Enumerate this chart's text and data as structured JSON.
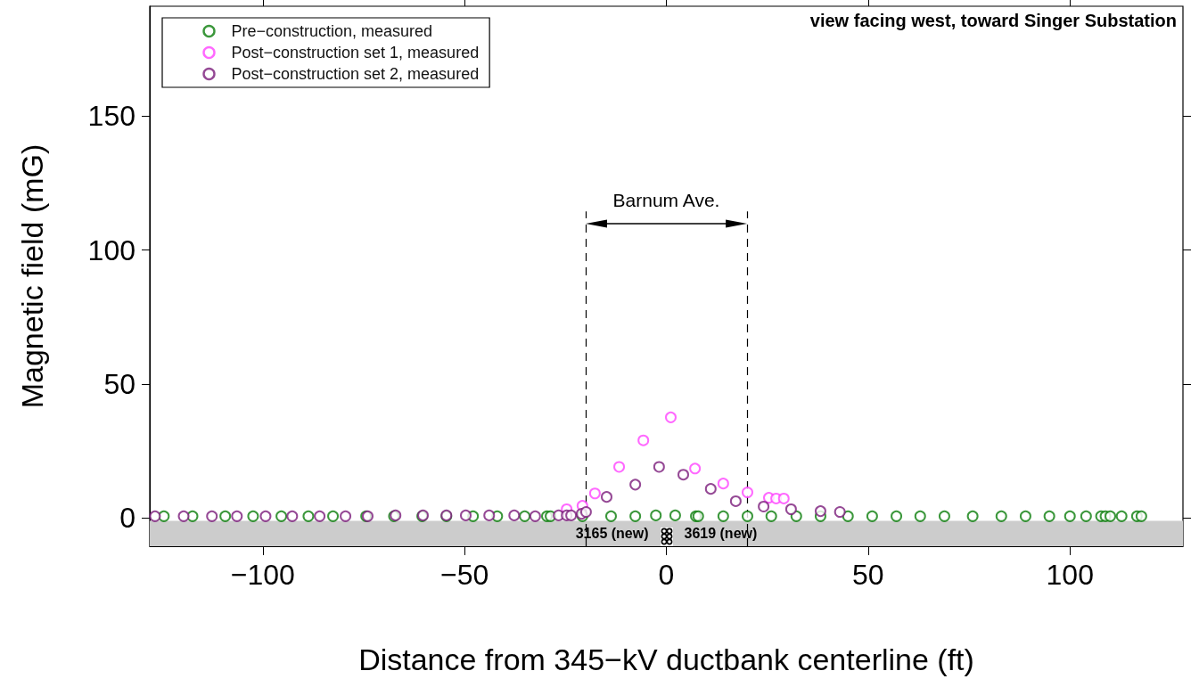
{
  "chart_data": {
    "type": "scatter",
    "xlabel": "Distance from 345−kV ductbank centerline (ft)",
    "ylabel": "Magnetic field (mG)",
    "xlim": [
      -128,
      128
    ],
    "ylim": [
      -10.5,
      191
    ],
    "xticks": [
      {
        "value": -100,
        "label": "−100"
      },
      {
        "value": -50,
        "label": "−50"
      },
      0,
      50,
      100
    ],
    "yticks": [
      0,
      50,
      100,
      150
    ],
    "grid": false,
    "legend": "top left",
    "marker": "circle",
    "title": "view facing west, toward Singer Substation",
    "annotations": [
      "Barnum Ave.",
      "3165 (new)",
      "3619 (new)"
    ],
    "ref_lines": [
      {
        "axis": "x",
        "value": -20,
        "color": "#000000",
        "line_style": "dashed"
      },
      {
        "axis": "x",
        "value": 20,
        "color": "#000000",
        "line_style": "dashed"
      }
    ],
    "bands": [
      {
        "axis": "y",
        "from": -10.5,
        "to": -1,
        "color": "#cccccc"
      }
    ],
    "series": [
      {
        "name": "Pre−construction, measured",
        "color": "#0a7d0a",
        "x": [
          -124.5,
          -117.4,
          -109.3,
          -102.4,
          -95.4,
          -88.7,
          -82.6,
          -74.4,
          -67.5,
          -60.5,
          -54.5,
          -47.9,
          -41.9,
          -35.1,
          -29.6,
          -28.7,
          -20.8,
          -13.7,
          -7.7,
          -2.6,
          2.2,
          7.3,
          7.9,
          14.1,
          20.1,
          26,
          32.2,
          38.2,
          45,
          51,
          57,
          62.9,
          68.9,
          75.9,
          83,
          89,
          94.9,
          100,
          104,
          107.7,
          108.8,
          110,
          112.8,
          116.6,
          117.7
        ],
        "values": [
          0.7,
          0.7,
          0.7,
          0.7,
          0.7,
          0.7,
          0.7,
          0.7,
          0.7,
          0.7,
          0.7,
          0.7,
          0.7,
          0.7,
          0.7,
          0.7,
          0.7,
          0.7,
          0.7,
          1,
          1,
          0.7,
          0.7,
          0.7,
          0.7,
          0.7,
          0.7,
          0.7,
          0.7,
          0.7,
          0.7,
          0.7,
          0.7,
          0.7,
          0.7,
          0.7,
          0.7,
          0.7,
          0.7,
          0.7,
          0.7,
          0.7,
          0.7,
          0.7,
          0.7
        ]
      },
      {
        "name": "Post−construction set 1, measured",
        "color": "#ff44ff",
        "x": [
          -24.7,
          -20.8,
          -17.7,
          -11.7,
          -5.7,
          1.1,
          7.1,
          14.1,
          20.1,
          25.4,
          27.2,
          29.1
        ],
        "values": [
          3.3,
          4.6,
          9.2,
          19.1,
          29,
          37.6,
          18.5,
          12.9,
          9.6,
          7.6,
          7.3,
          7.3
        ]
      },
      {
        "name": "Post−construction set 2, measured",
        "color": "#7b1c7b",
        "x": [
          -126.7,
          -119.6,
          -112.6,
          -106.4,
          -99.3,
          -92.7,
          -85.9,
          -79.5,
          -74,
          -67.1,
          -60.3,
          -54.5,
          -49.7,
          -43.9,
          -37.7,
          -32.5,
          -26.7,
          -24.7,
          -23.6,
          -21,
          -19.9,
          -14.8,
          -7.7,
          -1.8,
          4.2,
          11,
          17.2,
          24.1,
          30.9,
          38.2,
          43
        ],
        "values": [
          0.7,
          0.7,
          0.7,
          0.7,
          0.7,
          0.7,
          0.7,
          0.7,
          0.7,
          1,
          1,
          1,
          1,
          1,
          1,
          0.7,
          1,
          1,
          1,
          1.6,
          2.3,
          7.9,
          12.5,
          19.1,
          16.2,
          10.9,
          6.3,
          4.3,
          3.3,
          2.6,
          2.3
        ]
      }
    ]
  }
}
